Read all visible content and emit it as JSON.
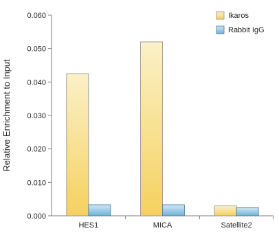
{
  "chart_data": {
    "type": "bar",
    "ylabel": "Relative Enrichment to Input",
    "categories": [
      "HES1",
      "MICA",
      "Satellite2"
    ],
    "series": [
      {
        "name": "Ikaros",
        "values": [
          0.0425,
          0.052,
          0.003
        ],
        "color_top": "#fbf1c8",
        "color_bottom": "#f5d15e",
        "stroke": "#8c8c8c"
      },
      {
        "name": "Rabbit IgG",
        "values": [
          0.0033,
          0.0033,
          0.0025
        ],
        "color_top": "#cfe8f5",
        "color_bottom": "#6fb3d9",
        "stroke": "#4a7a96"
      }
    ],
    "ylim": [
      0,
      0.06
    ],
    "yticks": [
      "0.000",
      "0.010",
      "0.020",
      "0.030",
      "0.040",
      "0.050",
      "0.060"
    ],
    "legend_position": "top-right",
    "grid": false
  }
}
